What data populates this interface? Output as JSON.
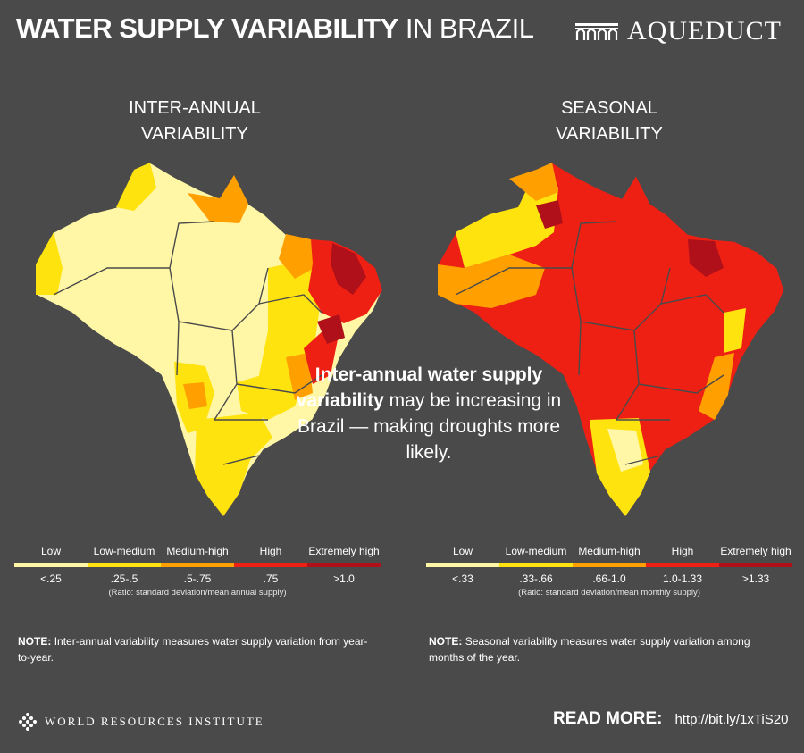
{
  "header": {
    "title_bold": "WATER SUPPLY VARIABILITY",
    "title_rest": "IN BRAZIL",
    "brand": "AQUEDUCT"
  },
  "maps": {
    "left": {
      "title_line1": "INTER-ANNUAL",
      "title_line2": "VARIABILITY"
    },
    "right": {
      "title_line1": "SEASONAL",
      "title_line2": "VARIABILITY"
    }
  },
  "colors": {
    "background": "#4a4a4a",
    "low": "#fff7a6",
    "low_medium": "#ffe30f",
    "medium_high": "#ff9f00",
    "high": "#ed2013",
    "extremely_high": "#b0101a",
    "border": "#4a4a4a"
  },
  "center": {
    "bold": "Inter-annual water supply variability",
    "rest": "may be increasing in Brazil — making droughts more likely."
  },
  "legend_left": {
    "labels": [
      "Low",
      "Low-medium",
      "Medium-high",
      "High",
      "Extremely high"
    ],
    "ranges": [
      "<.25",
      ".25-.5",
      ".5-.75",
      ".75",
      ">1.0"
    ],
    "ratio": "(Ratio: standard deviation/mean annual supply)"
  },
  "legend_right": {
    "labels": [
      "Low",
      "Low-medium",
      "Medium-high",
      "High",
      "Extremely high"
    ],
    "ranges": [
      "<.33",
      ".33-.66",
      ".66-1.0",
      "1.0-1.33",
      ">1.33"
    ],
    "ratio": "(Ratio: standard deviation/mean monthly supply)"
  },
  "notes": {
    "label": "NOTE:",
    "left": "Inter-annual variability measures water supply variation from year-to-year.",
    "right": "Seasonal variability measures water supply variation among months of the year."
  },
  "footer": {
    "org": "WORLD RESOURCES INSTITUTE",
    "read_more_label": "READ MORE:",
    "url": "http://bit.ly/1xTiS20"
  }
}
